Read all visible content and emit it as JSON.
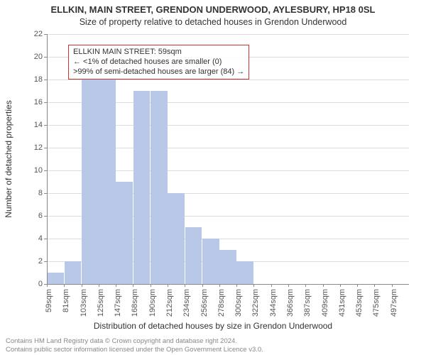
{
  "main_title": "ELLKIN, MAIN STREET, GRENDON UNDERWOOD, AYLESBURY, HP18 0SL",
  "sub_title": "Size of property relative to detached houses in Grendon Underwood",
  "chart": {
    "type": "bar",
    "y_label": "Number of detached properties",
    "x_label": "Distribution of detached houses by size in Grendon Underwood",
    "y_min": 0,
    "y_max": 22,
    "y_tick_step": 2,
    "bar_color": "#b9c7e8",
    "grid_color": "#dddddd",
    "axis_color": "#888888",
    "background_color": "#ffffff",
    "categories": [
      "59sqm",
      "81sqm",
      "103sqm",
      "125sqm",
      "147sqm",
      "168sqm",
      "190sqm",
      "212sqm",
      "234sqm",
      "256sqm",
      "278sqm",
      "300sqm",
      "322sqm",
      "344sqm",
      "366sqm",
      "387sqm",
      "409sqm",
      "431sqm",
      "453sqm",
      "475sqm",
      "497sqm"
    ],
    "values": [
      1,
      2,
      18,
      18,
      9,
      17,
      17,
      8,
      5,
      4,
      3,
      2,
      0,
      0,
      0,
      0,
      0,
      0,
      0,
      0,
      0
    ],
    "annotation": {
      "line1": "ELLKIN MAIN STREET: 59sqm",
      "line2": "← <1% of detached houses are smaller (0)",
      "line3": ">99% of semi-detached houses are larger (84) →",
      "border_color": "#cc3333"
    }
  },
  "footer": {
    "line1": "Contains HM Land Registry data © Crown copyright and database right 2024.",
    "line2": "Contains public sector information licensed under the Open Government Licence v3.0."
  }
}
